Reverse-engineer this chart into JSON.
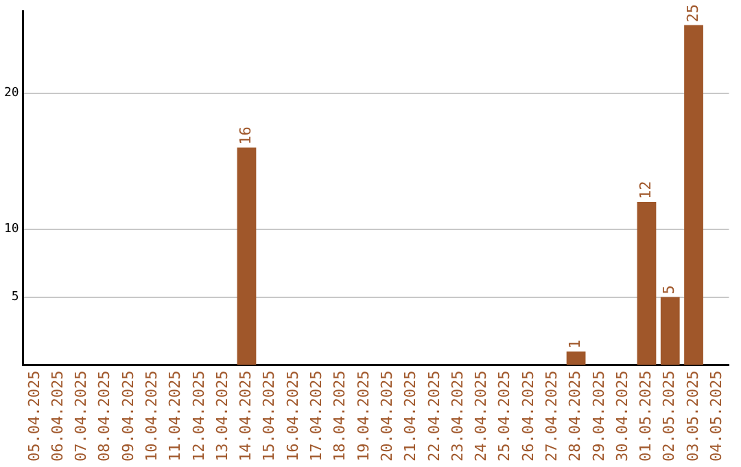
{
  "chart_data": {
    "type": "bar",
    "categories": [
      "05.04.2025",
      "06.04.2025",
      "07.04.2025",
      "08.04.2025",
      "09.04.2025",
      "10.04.2025",
      "11.04.2025",
      "12.04.2025",
      "13.04.2025",
      "14.04.2025",
      "15.04.2025",
      "16.04.2025",
      "17.04.2025",
      "18.04.2025",
      "19.04.2025",
      "20.04.2025",
      "21.04.2025",
      "22.04.2025",
      "23.04.2025",
      "24.04.2025",
      "25.04.2025",
      "26.04.2025",
      "27.04.2025",
      "28.04.2025",
      "29.04.2025",
      "30.04.2025",
      "01.05.2025",
      "02.05.2025",
      "03.05.2025",
      "04.05.2025"
    ],
    "values": [
      0,
      0,
      0,
      0,
      0,
      0,
      0,
      0,
      0,
      16,
      0,
      0,
      0,
      0,
      0,
      0,
      0,
      0,
      0,
      0,
      0,
      0,
      0,
      1,
      0,
      0,
      12,
      5,
      25,
      0
    ],
    "value_labels": [
      null,
      null,
      null,
      null,
      null,
      null,
      null,
      null,
      null,
      "16",
      null,
      null,
      null,
      null,
      null,
      null,
      null,
      null,
      null,
      null,
      null,
      null,
      null,
      "1",
      null,
      null,
      "12",
      "5",
      "25",
      null
    ],
    "color": "#a0572a",
    "ylim": [
      0,
      26
    ],
    "yticks": [
      5,
      10,
      20
    ],
    "grid": "y",
    "legend": false
  }
}
